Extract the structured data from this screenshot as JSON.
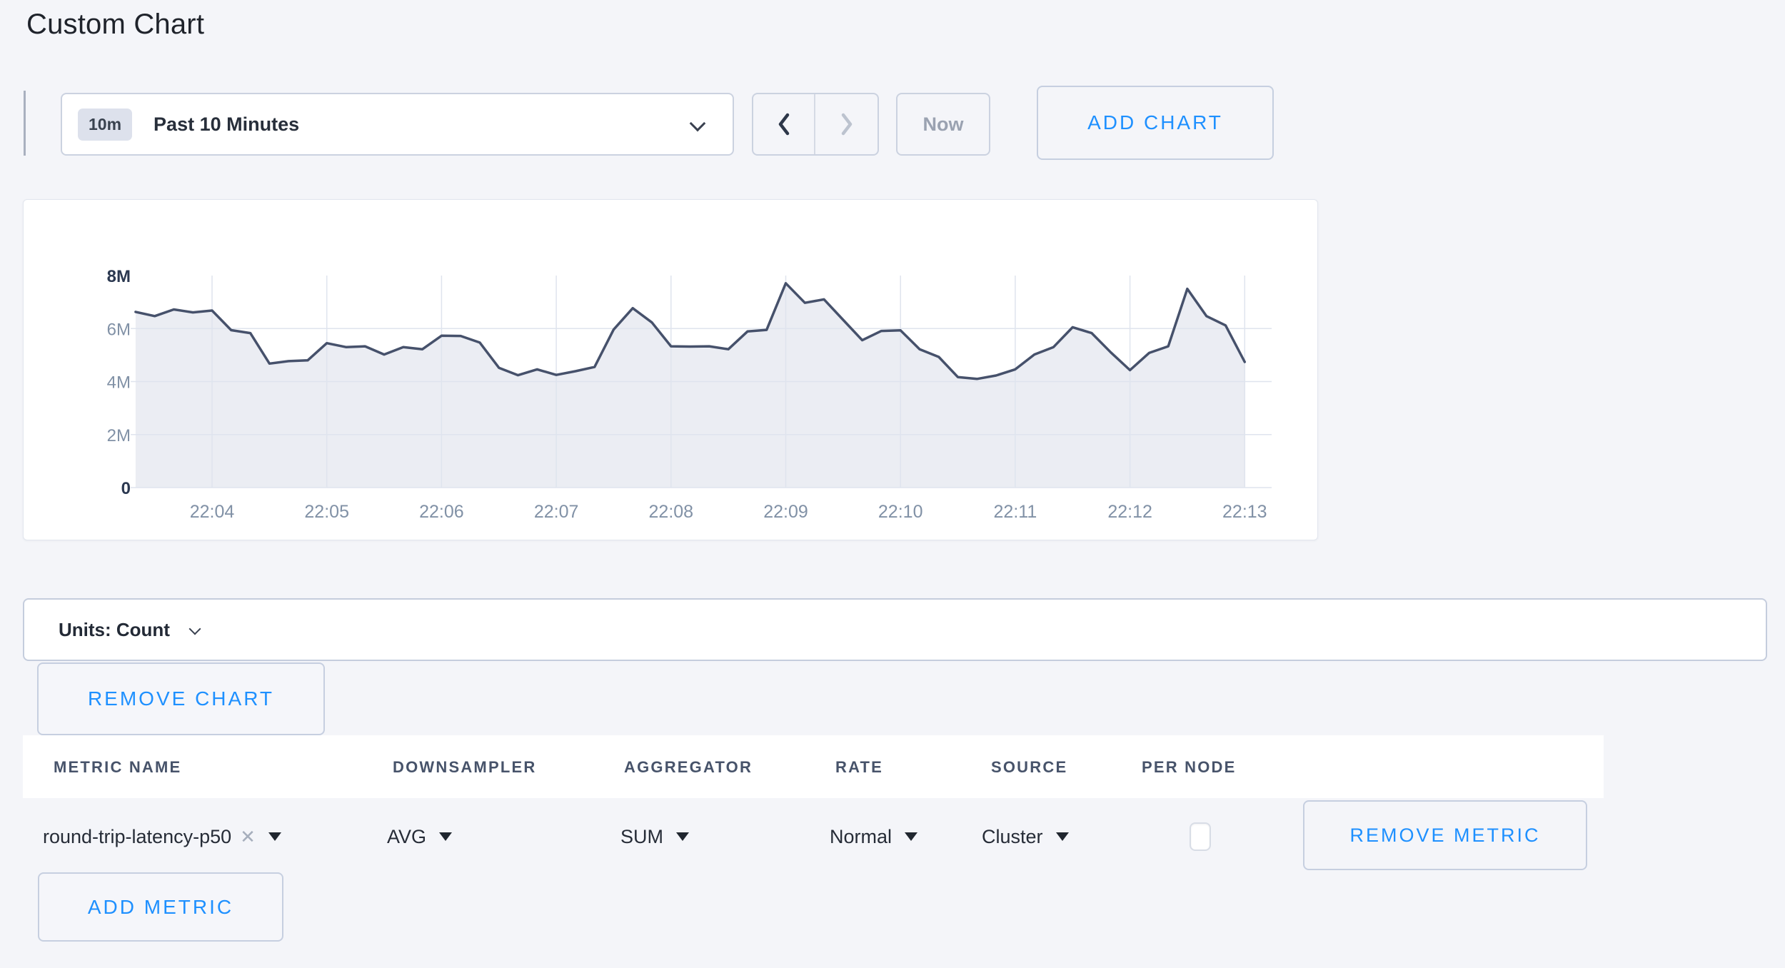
{
  "page": {
    "title": "Custom Chart",
    "background": "#f4f5f9",
    "accent_blue": "#1e90ff"
  },
  "toolbar": {
    "range_badge": "10m",
    "range_label": "Past 10 Minutes",
    "now_label": "Now",
    "add_chart_label": "ADD CHART"
  },
  "units_bar": {
    "label": "Units: Count"
  },
  "remove_chart_label": "REMOVE CHART",
  "add_metric_label": "ADD METRIC",
  "metrics_table": {
    "headers": [
      "METRIC NAME",
      "DOWNSAMPLER",
      "AGGREGATOR",
      "RATE",
      "SOURCE",
      "PER NODE"
    ],
    "rows": [
      {
        "metric": "round-trip-latency-p50",
        "remove_tag_icon": "x",
        "downsampler": "AVG",
        "aggregator": "SUM",
        "rate": "Normal",
        "source": "Cluster",
        "per_node_checked": false,
        "remove_label": "REMOVE METRIC"
      }
    ]
  },
  "chart_data": {
    "type": "area",
    "series": [
      {
        "name": "round-trip-latency-p50",
        "downsampler": "AVG",
        "aggregator": "SUM"
      }
    ],
    "units": "Count",
    "x_start_time": "22:03:20",
    "x_interval_seconds": 10,
    "x_ticks": [
      "22:04",
      "22:05",
      "22:06",
      "22:07",
      "22:08",
      "22:09",
      "22:10",
      "22:11",
      "22:12",
      "22:13"
    ],
    "y_ticks": [
      "0",
      "2M",
      "4M",
      "6M",
      "8M"
    ],
    "y_tick_values": [
      0,
      2,
      4,
      6,
      8
    ],
    "ylim_label": "[0, 8M]",
    "values_unit": "millions of count",
    "values": [
      6.63,
      6.47,
      6.72,
      6.61,
      6.68,
      5.94,
      5.83,
      4.68,
      4.77,
      4.8,
      5.45,
      5.3,
      5.33,
      5.02,
      5.3,
      5.22,
      5.73,
      5.72,
      5.47,
      4.52,
      4.24,
      4.46,
      4.25,
      4.39,
      4.55,
      5.96,
      6.77,
      6.23,
      5.33,
      5.32,
      5.33,
      5.22,
      5.89,
      5.95,
      7.71,
      6.97,
      7.1,
      6.33,
      5.56,
      5.91,
      5.93,
      5.22,
      4.93,
      4.17,
      4.1,
      4.23,
      4.46,
      5.02,
      5.3,
      6.05,
      5.83,
      5.1,
      4.43,
      5.08,
      5.33,
      7.5,
      6.47,
      6.12,
      4.74
    ],
    "grid": true,
    "legend": false,
    "colors": {
      "line": "#46516b",
      "fill": "#ebedf3",
      "grid": "#dfe4ee",
      "axis_gray": "#8191a6",
      "axis_dark": "#2b3850"
    }
  }
}
